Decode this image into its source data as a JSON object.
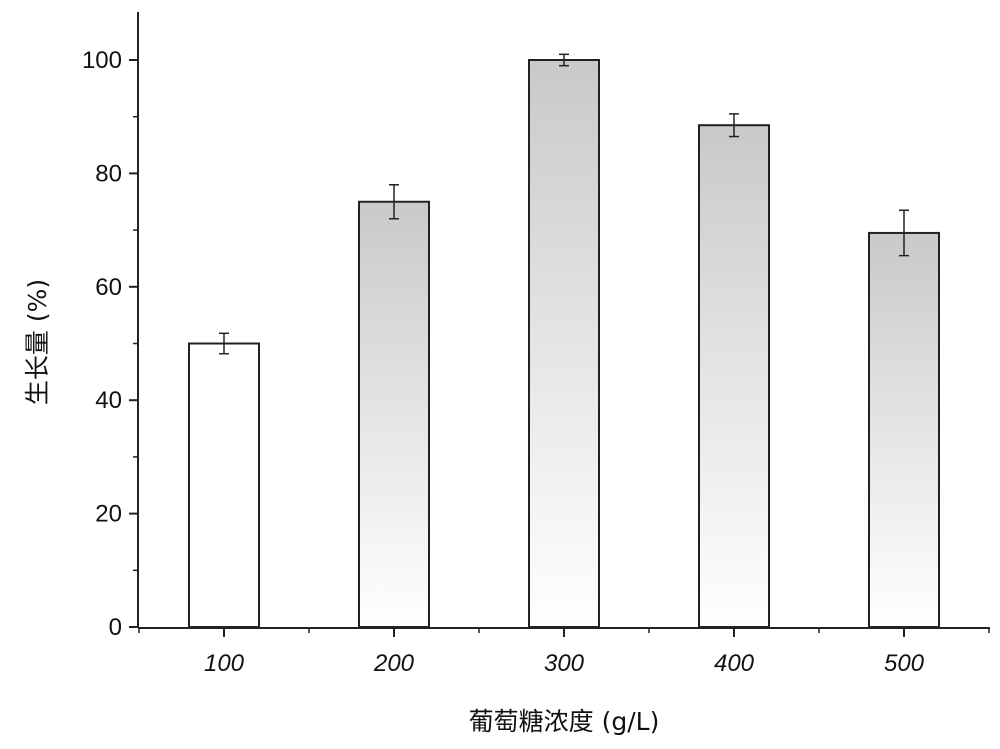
{
  "chart_data": {
    "type": "bar",
    "categories": [
      "100",
      "200",
      "300",
      "400",
      "500"
    ],
    "values": [
      50,
      75,
      100,
      88.5,
      69.5
    ],
    "errors": [
      1.8,
      3,
      1,
      2,
      4
    ],
    "xlabel": "葡萄糖浓度 (g/L)",
    "ylabel": "生长量 (%)",
    "ylim": [
      0,
      110
    ],
    "yticks": [
      0,
      20,
      40,
      60,
      80,
      100
    ],
    "grid": false,
    "legend": "none",
    "colors": {
      "bar_fill": "#ffffff",
      "bar_stroke": "#222222",
      "stipple": "#6f6f6f",
      "axis": "#222222"
    }
  }
}
